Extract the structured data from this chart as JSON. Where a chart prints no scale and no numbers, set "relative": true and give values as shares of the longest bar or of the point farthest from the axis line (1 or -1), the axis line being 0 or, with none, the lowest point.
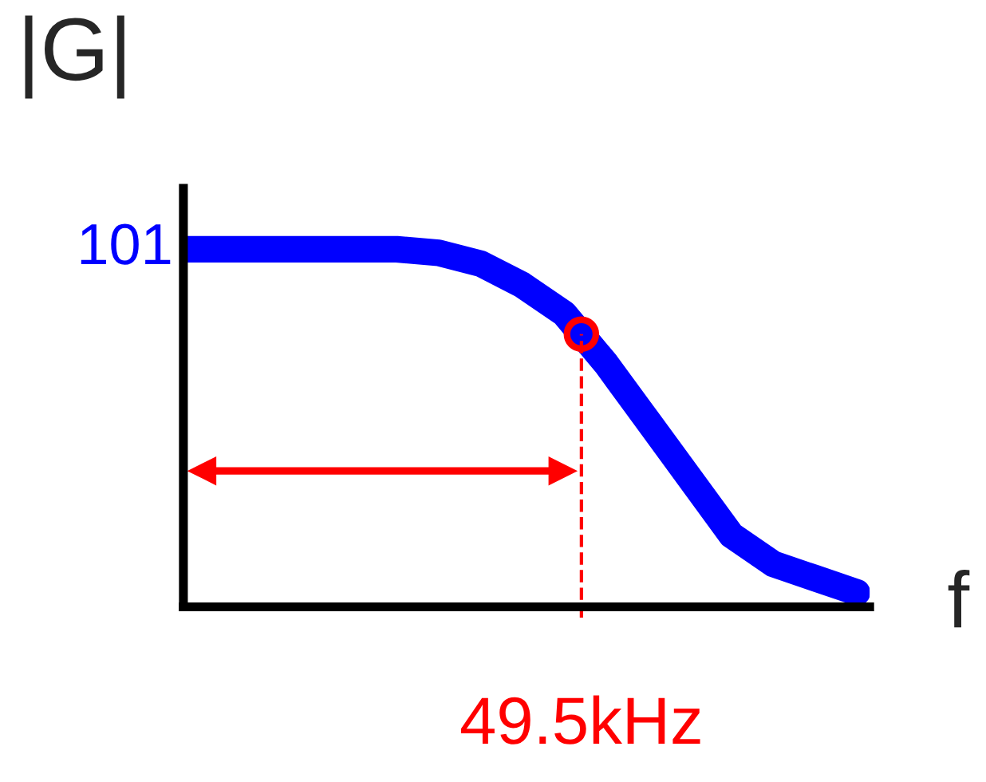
{
  "chart_data": {
    "type": "line",
    "relative": true,
    "xlabel": "f",
    "ylabel": "|G|",
    "categories": [
      null,
      null,
      null,
      null,
      null,
      null,
      null,
      null,
      null,
      null,
      null,
      null,
      null,
      null,
      null,
      null,
      null
    ],
    "series": [
      {
        "color": "#0000ff",
        "values": [
          1.0,
          1.0,
          1.0,
          1.0,
          1.0,
          1.0,
          0.99,
          0.96,
          0.9,
          0.82,
          0.68,
          0.52,
          0.36,
          0.2,
          0.12,
          0.08,
          0.04
        ]
      }
    ],
    "annotations": [
      "101",
      "49.5kHz"
    ],
    "legend": false
  }
}
